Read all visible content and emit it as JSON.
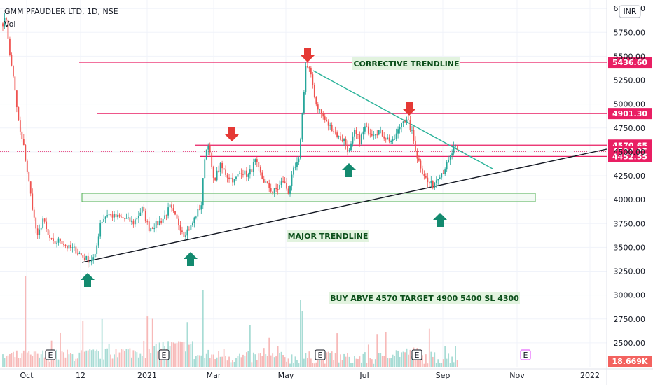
{
  "header": {
    "symbol_line": "GMM PFAUDLER LTD, 1D, NSE",
    "volume_label": "Vol"
  },
  "currency_badge": "INR",
  "chart_data": {
    "type": "candlestick",
    "y_axis": {
      "ticks": [
        "6000.00",
        "5750.00",
        "5500.00",
        "5250.00",
        "5000.00",
        "4750.00",
        "4500.00",
        "4250.00",
        "4000.00",
        "3750.00",
        "3500.00",
        "3250.00",
        "3000.00",
        "2750.00",
        "2500.00"
      ],
      "range": [
        2250,
        6060
      ]
    },
    "x_axis": {
      "ticks": [
        "Oct",
        "12",
        "2021",
        "Mar",
        "May",
        "Jul",
        "Sep",
        "Nov",
        "2022"
      ]
    },
    "price_levels": [
      {
        "label": "5436.60",
        "value": 5436.6
      },
      {
        "label": "4901.30",
        "value": 4901.3
      },
      {
        "label": "4570.65",
        "value": 4570.65
      },
      {
        "label": "4504.95",
        "value": 4504.95
      },
      {
        "label": "4452.55",
        "value": 4452.55
      }
    ],
    "volume_label": "18.669K",
    "annotations": [
      "CORRECTIVE TRENDLINE",
      "MAJOR TRENDLINE",
      "BUY ABVE 4570 TARGET 4900 5400 SL 4300"
    ],
    "event_markers": [
      "E",
      "E",
      "E",
      "E",
      "E"
    ],
    "colors": {
      "up": "#26a69a",
      "down": "#ef5350",
      "level": "#e91e63",
      "trend_corrective": "#2bb39a",
      "trend_major": "#131722",
      "zone": "#4caf50",
      "arrow_up": "#138a6f",
      "arrow_down": "#e53935",
      "label_bg": "#e2f3df"
    },
    "keypoints": [
      [
        0,
        5850
      ],
      [
        2,
        5900
      ],
      [
        4,
        5500
      ],
      [
        6,
        5300
      ],
      [
        8,
        4950
      ],
      [
        10,
        4700
      ],
      [
        12,
        4550
      ],
      [
        14,
        4300
      ],
      [
        16,
        4050
      ],
      [
        18,
        3800
      ],
      [
        20,
        3600
      ],
      [
        23,
        3800
      ],
      [
        26,
        3620
      ],
      [
        29,
        3540
      ],
      [
        33,
        3580
      ],
      [
        37,
        3500
      ],
      [
        41,
        3480
      ],
      [
        46,
        3400
      ],
      [
        50,
        3360
      ],
      [
        53,
        3400
      ],
      [
        56,
        3760
      ],
      [
        60,
        3850
      ],
      [
        65,
        3820
      ],
      [
        70,
        3800
      ],
      [
        75,
        3760
      ],
      [
        80,
        3900
      ],
      [
        84,
        3700
      ],
      [
        88,
        3740
      ],
      [
        92,
        3800
      ],
      [
        96,
        3920
      ],
      [
        100,
        3780
      ],
      [
        104,
        3640
      ],
      [
        108,
        3720
      ],
      [
        111,
        3840
      ],
      [
        114,
        3950
      ],
      [
        116,
        4450
      ],
      [
        118,
        4600
      ],
      [
        121,
        4200
      ],
      [
        125,
        4350
      ],
      [
        129,
        4250
      ],
      [
        133,
        4200
      ],
      [
        137,
        4300
      ],
      [
        141,
        4250
      ],
      [
        145,
        4400
      ],
      [
        149,
        4220
      ],
      [
        152,
        4150
      ],
      [
        155,
        4080
      ],
      [
        158,
        4120
      ],
      [
        161,
        4200
      ],
      [
        164,
        4080
      ],
      [
        167,
        4300
      ],
      [
        170,
        4400
      ],
      [
        172,
        4900
      ],
      [
        174,
        5400
      ],
      [
        176,
        5360
      ],
      [
        178,
        5200
      ],
      [
        180,
        5000
      ],
      [
        183,
        4900
      ],
      [
        186,
        4800
      ],
      [
        189,
        4750
      ],
      [
        193,
        4650
      ],
      [
        196,
        4620
      ],
      [
        199,
        4500
      ],
      [
        202,
        4700
      ],
      [
        205,
        4620
      ],
      [
        208,
        4750
      ],
      [
        212,
        4700
      ],
      [
        216,
        4720
      ],
      [
        220,
        4650
      ],
      [
        224,
        4600
      ],
      [
        227,
        4720
      ],
      [
        230,
        4850
      ],
      [
        233,
        4800
      ],
      [
        235,
        4700
      ],
      [
        238,
        4450
      ],
      [
        241,
        4300
      ],
      [
        244,
        4180
      ],
      [
        247,
        4150
      ],
      [
        250,
        4250
      ],
      [
        253,
        4300
      ],
      [
        256,
        4400
      ],
      [
        259,
        4530
      ],
      [
        261,
        4540
      ]
    ],
    "volume_levels": [
      0.1,
      0.12,
      0.15,
      0.2,
      0.35,
      0.12,
      0.08,
      0.06,
      0.07,
      0.05,
      0.18,
      0.07
    ]
  }
}
